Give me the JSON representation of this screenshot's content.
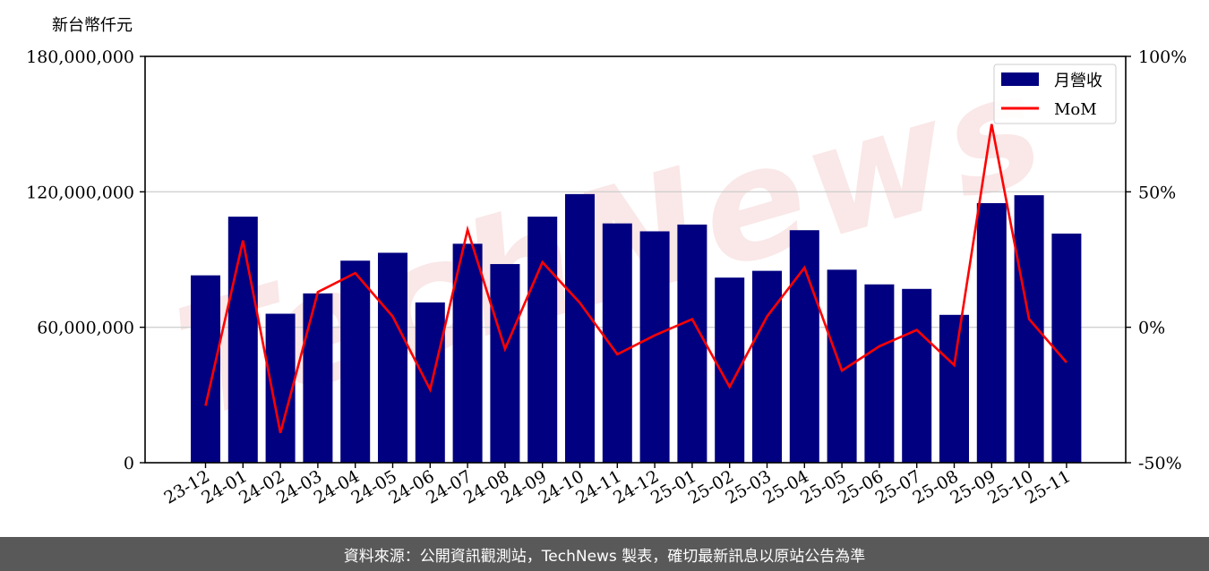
{
  "chart_data": {
    "type": "bar",
    "ylabel": "新台幣仟元",
    "categories": [
      "23-12",
      "24-01",
      "24-02",
      "24-03",
      "24-04",
      "24-05",
      "24-06",
      "24-07",
      "24-08",
      "24-09",
      "24-10",
      "24-11",
      "24-12",
      "25-01",
      "25-02",
      "25-03",
      "25-04",
      "25-05",
      "25-06",
      "25-07",
      "25-08",
      "25-09",
      "25-10",
      "25-11"
    ],
    "series": [
      {
        "name": "月營收",
        "type": "bar",
        "axis": "left",
        "color": "#000080",
        "values": [
          83000000,
          109000000,
          66000000,
          75000000,
          89500000,
          93000000,
          71000000,
          97000000,
          88000000,
          109000000,
          119000000,
          106000000,
          102500000,
          105500000,
          82000000,
          85000000,
          103000000,
          85500000,
          79000000,
          77000000,
          65500000,
          115000000,
          118500000,
          101500000
        ]
      },
      {
        "name": "MoM",
        "type": "line",
        "axis": "right",
        "color": "#ff0000",
        "values": [
          -29,
          32,
          -39,
          13,
          20,
          4,
          -23,
          36,
          -8,
          24,
          9,
          -10,
          -3,
          3,
          -22,
          4,
          22,
          -16,
          -7,
          -1,
          -14,
          75,
          3,
          -13
        ]
      }
    ],
    "ylim": [
      0,
      180000000
    ],
    "y_ticks": [
      "0",
      "60,000,000",
      "120,000,000",
      "180,000,000"
    ],
    "y2lim": [
      -50,
      100
    ],
    "y2_ticks": [
      "-50%",
      "0%",
      "50%",
      "100%"
    ],
    "grid": "horizontal",
    "legend_position": "top-right"
  },
  "watermark": "TechNews",
  "footer_text": "資料來源：公開資訊觀測站，TechNews 製表，確切最新訊息以原站公告為準"
}
